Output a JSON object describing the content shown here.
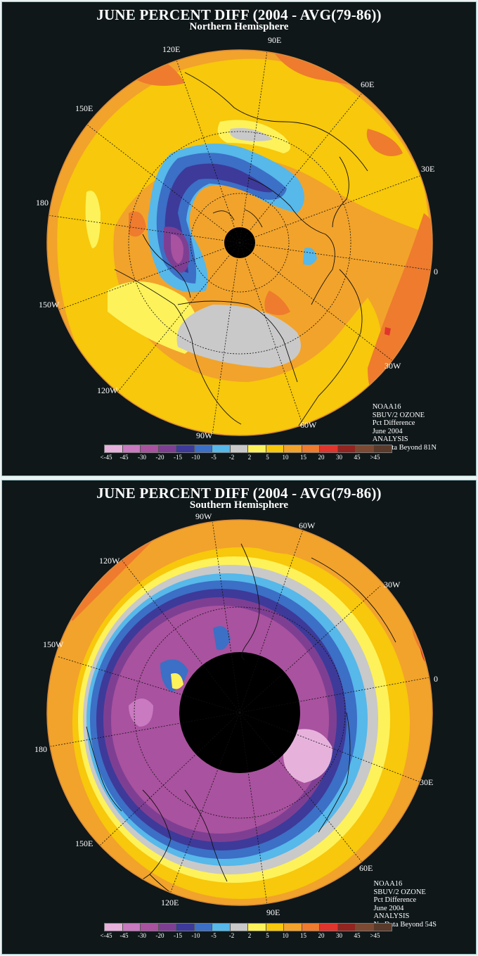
{
  "panels": [
    {
      "title": "JUNE PERCENT DIFF (2004 - AVG(79-86))",
      "subtitle": "Northern Hemisphere",
      "lon_labels": [
        "120E",
        "90E",
        "60E",
        "150E",
        "30E",
        "180",
        "0",
        "150W",
        "30W",
        "120W",
        "90W",
        "60W"
      ],
      "info": [
        "NOAA16",
        "SBUV/2 OZONE",
        "Pct Difference",
        "June 2004",
        "ANALYSIS",
        "No Data Beyond 81N"
      ]
    },
    {
      "title": "JUNE PERCENT DIFF (2004 - AVG(79-86))",
      "subtitle": "Southern Hemisphere",
      "lon_labels": [
        "90W",
        "60W",
        "120W",
        "30W",
        "150W",
        "0",
        "180",
        "30E",
        "150E",
        "60E",
        "120E",
        "90E"
      ],
      "info": [
        "NOAA16",
        "SBUV/2 OZONE",
        "Pct Difference",
        "June 2004",
        "ANALYSIS",
        "No Data Beyond 54S"
      ]
    }
  ],
  "legend": {
    "colors": [
      "#e6b2dc",
      "#c97ac0",
      "#a9529f",
      "#7e3f93",
      "#3d3a9a",
      "#3c6fc6",
      "#57b8ea",
      "#c9c9c9",
      "#fdf25a",
      "#f7c80b",
      "#f2a32b",
      "#ee7b2e",
      "#e0352c",
      "#92251f",
      "#7c4a33",
      "#5a3a2b"
    ],
    "labels": [
      "<-45",
      "-45",
      "-30",
      "-20",
      "-15",
      "-10",
      "-5",
      "-2",
      "2",
      "5",
      "10",
      "15",
      "20",
      "30",
      "45",
      ">45"
    ]
  }
}
